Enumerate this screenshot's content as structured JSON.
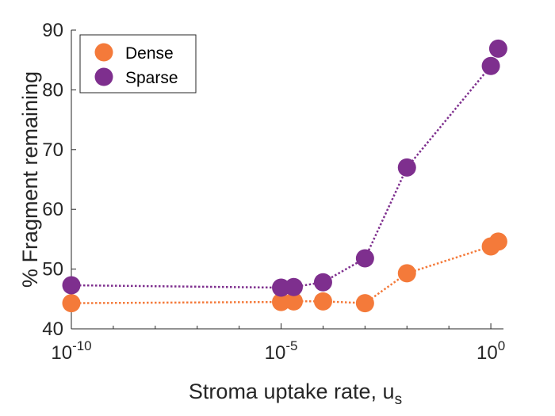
{
  "chart_data": {
    "type": "line",
    "title": "",
    "xlabel": "Stroma uptake rate, u",
    "xlabel_subscript": "s",
    "ylabel": "% Fragment remaining",
    "xscale": "log",
    "xlim": [
      1e-10,
      2
    ],
    "ylim": [
      40,
      90
    ],
    "xticks": [
      {
        "value": 1e-10,
        "base": "10",
        "exp": "-10"
      },
      {
        "value": 1e-05,
        "base": "10",
        "exp": "-5"
      },
      {
        "value": 1,
        "base": "10",
        "exp": "0"
      }
    ],
    "yticks": [
      40,
      50,
      60,
      70,
      80,
      90
    ],
    "grid": false,
    "legend": "top-left",
    "series": [
      {
        "name": "Dense",
        "color": "#F47A3A",
        "line_style": "dotted",
        "marker": "circle",
        "points": [
          {
            "x": 1e-10,
            "y": 44.3
          },
          {
            "x": 1e-05,
            "y": 44.5
          },
          {
            "x": 2e-05,
            "y": 44.6
          },
          {
            "x": 0.0001,
            "y": 44.6
          },
          {
            "x": 0.001,
            "y": 44.3
          },
          {
            "x": 0.01,
            "y": 49.3
          },
          {
            "x": 1,
            "y": 53.8
          },
          {
            "x": 1.5,
            "y": 54.6
          }
        ]
      },
      {
        "name": "Sparse",
        "color": "#7E2F8E",
        "line_style": "dotted",
        "marker": "circle",
        "points": [
          {
            "x": 1e-10,
            "y": 47.3
          },
          {
            "x": 1e-05,
            "y": 46.9
          },
          {
            "x": 2e-05,
            "y": 47.0
          },
          {
            "x": 0.0001,
            "y": 47.8
          },
          {
            "x": 0.001,
            "y": 51.8
          },
          {
            "x": 0.01,
            "y": 67.0
          },
          {
            "x": 1,
            "y": 84.0
          },
          {
            "x": 1.5,
            "y": 86.9
          }
        ]
      }
    ]
  }
}
